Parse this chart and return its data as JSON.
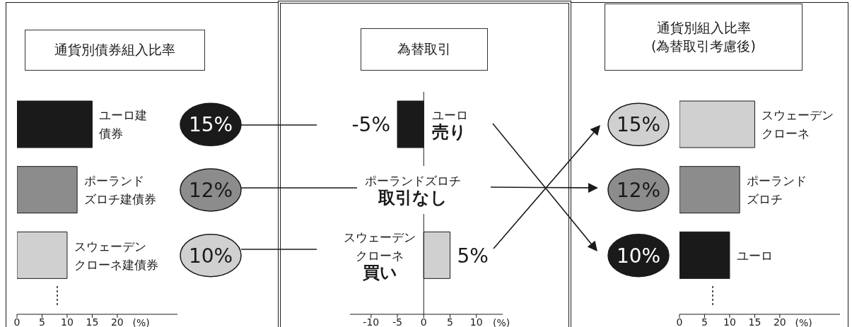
{
  "chart_data": [
    {
      "type": "bar",
      "orientation": "horizontal",
      "title": "通貨別債券組入比率",
      "xlabel": "(%)",
      "categories": [
        "ユーロ建債券",
        "ポーランドズロチ建債券",
        "スウェーデンクローネ建債券"
      ],
      "values": [
        15,
        12,
        10
      ],
      "colors": [
        "#1a1a1a",
        "#8c8c8c",
        "#d0d0d0"
      ],
      "value_labels": [
        "15%",
        "12%",
        "10%"
      ],
      "xlim": [
        0,
        32
      ],
      "xticks": [
        0,
        5,
        10,
        15,
        20
      ]
    },
    {
      "type": "bar",
      "orientation": "horizontal",
      "title": "為替取引",
      "xlabel": "(%)",
      "categories": [
        "ユーロ売り",
        "ポーランドズロチ取引なし",
        "スウェーデンクローネ買い"
      ],
      "values": [
        -5,
        0,
        5
      ],
      "colors": [
        "#1a1a1a",
        "#8c8c8c",
        "#d0d0d0"
      ],
      "value_labels": [
        "-5%",
        null,
        "5%"
      ],
      "xlim": [
        -14,
        15
      ],
      "xticks": [
        -10,
        -5,
        0,
        5,
        10
      ]
    },
    {
      "type": "bar",
      "orientation": "horizontal",
      "title": "通貨別組入比率",
      "subtitle": "(為替取引考慮後)",
      "xlabel": "(%)",
      "categories": [
        "スウェーデンクローネ",
        "ポーランドズロチ",
        "ユーロ"
      ],
      "values": [
        15,
        12,
        10
      ],
      "colors": [
        "#d0d0d0",
        "#8c8c8c",
        "#1a1a1a"
      ],
      "value_labels": [
        "15%",
        "12%",
        "10%"
      ],
      "xlim": [
        0,
        32
      ],
      "xticks": [
        0,
        5,
        10,
        15,
        20
      ]
    }
  ]
}
